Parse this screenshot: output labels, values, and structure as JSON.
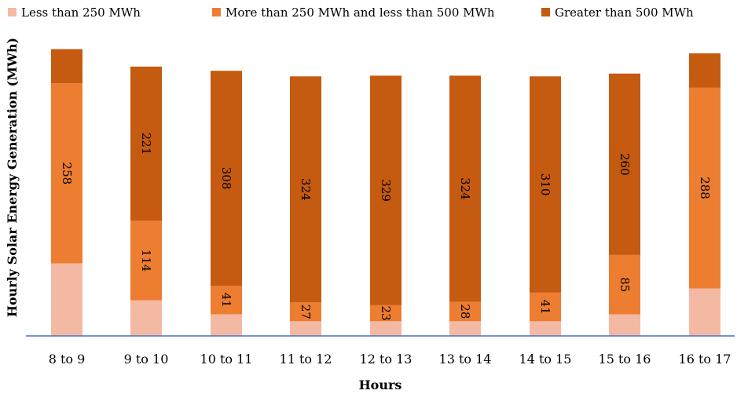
{
  "chart_data": {
    "type": "bar",
    "stacked": true,
    "orientation": "vertical",
    "title": "",
    "xlabel": "Hours",
    "ylabel": "Hourly Solar Energy Generation (MWh)",
    "legend_position": "top",
    "grid": false,
    "categories": [
      "8 to 9",
      "9 to 10",
      "10 to 11",
      "11 to 12",
      "12 to 13",
      "13 to 14",
      "14 to 15",
      "15 to 16",
      "16 to 17"
    ],
    "series": [
      {
        "name": "Less than 250 MWh",
        "color": "#F4B9A3",
        "values": [
          104,
          51,
          31,
          21,
          21,
          21,
          21,
          31,
          68
        ],
        "labels": [
          "",
          "",
          "",
          "",
          "",
          "",
          "",
          "",
          ""
        ]
      },
      {
        "name": "More than 250 MWh and less than 500 MWh",
        "color": "#ED7D31",
        "values": [
          258,
          114,
          41,
          27,
          23,
          28,
          41,
          85,
          288
        ],
        "labels": [
          "258",
          "114",
          "41",
          "27",
          "23",
          "28",
          "41",
          "85",
          "288"
        ]
      },
      {
        "name": "Greater than 500 MWh",
        "color": "#C55A11",
        "values": [
          49,
          221,
          308,
          324,
          329,
          324,
          310,
          260,
          49
        ],
        "labels": [
          "",
          "221",
          "308",
          "324",
          "329",
          "324",
          "310",
          "260",
          ""
        ]
      }
    ]
  }
}
